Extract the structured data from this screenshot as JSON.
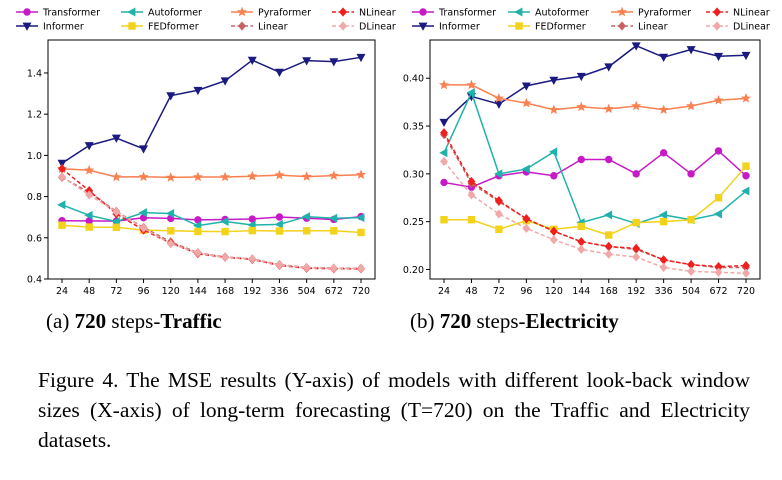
{
  "chart_data": [
    {
      "type": "line",
      "panel_label": "(a)",
      "subtitle_number": "720",
      "subtitle_mid": " steps-",
      "subtitle_dataset": "Traffic",
      "xlabel": "",
      "ylabel": "",
      "categories": [
        "24",
        "48",
        "72",
        "96",
        "120",
        "144",
        "168",
        "192",
        "336",
        "504",
        "672",
        "720"
      ],
      "ylim": [
        0.4,
        1.56
      ],
      "yticks": [
        0.4,
        0.6,
        0.8,
        1.0,
        1.2,
        1.4
      ],
      "ytick_labels": [
        "0.4",
        "0.6",
        "0.8",
        "1.0",
        "1.2",
        "1.4"
      ],
      "series": [
        {
          "name": "Transformer",
          "color": "#c71ac7",
          "marker": "circle",
          "dashed": false,
          "values": [
            0.683,
            0.682,
            0.681,
            0.697,
            0.694,
            0.687,
            0.689,
            0.691,
            0.701,
            0.695,
            0.689,
            0.703
          ]
        },
        {
          "name": "Informer",
          "color": "#1a1a80",
          "marker": "tri_down",
          "dashed": false,
          "values": [
            0.962,
            1.048,
            1.084,
            1.032,
            1.29,
            1.316,
            1.362,
            1.462,
            1.404,
            1.46,
            1.455,
            1.476
          ]
        },
        {
          "name": "Autoformer",
          "color": "#20b2aa",
          "marker": "tri_left",
          "dashed": false,
          "values": [
            0.76,
            0.709,
            0.679,
            0.722,
            0.718,
            0.659,
            0.679,
            0.662,
            0.665,
            0.703,
            0.695,
            0.698
          ]
        },
        {
          "name": "FEDformer",
          "color": "#f2d21a",
          "marker": "square",
          "dashed": false,
          "values": [
            0.661,
            0.652,
            0.651,
            0.637,
            0.634,
            0.631,
            0.63,
            0.635,
            0.633,
            0.634,
            0.634,
            0.626
          ]
        },
        {
          "name": "Pyraformer",
          "color": "#fa8050",
          "marker": "star",
          "dashed": false,
          "values": [
            0.935,
            0.928,
            0.895,
            0.896,
            0.893,
            0.895,
            0.895,
            0.899,
            0.904,
            0.897,
            0.902,
            0.906
          ]
        },
        {
          "name": "Linear",
          "color": "#c86262",
          "marker": "diamond",
          "dashed": true,
          "values": [
            0.893,
            0.821,
            0.728,
            0.65,
            0.58,
            0.528,
            0.507,
            0.498,
            0.47,
            0.456,
            0.453,
            0.452
          ]
        },
        {
          "name": "NLinear",
          "color": "#f01e1e",
          "marker": "diamond",
          "dashed": true,
          "values": [
            0.935,
            0.829,
            0.716,
            0.638,
            0.574,
            0.523,
            0.505,
            0.495,
            0.466,
            0.452,
            0.45,
            0.449
          ]
        },
        {
          "name": "DLinear",
          "color": "#f0a8a8",
          "marker": "diamond",
          "dashed": true,
          "values": [
            0.897,
            0.808,
            0.726,
            0.647,
            0.571,
            0.527,
            0.505,
            0.498,
            0.468,
            0.455,
            0.452,
            0.451
          ]
        }
      ]
    },
    {
      "type": "line",
      "panel_label": "(b)",
      "subtitle_number": "720",
      "subtitle_mid": " steps-",
      "subtitle_dataset": "Electricity",
      "xlabel": "",
      "ylabel": "",
      "categories": [
        "24",
        "48",
        "72",
        "96",
        "120",
        "144",
        "168",
        "192",
        "336",
        "504",
        "672",
        "720"
      ],
      "ylim": [
        0.19,
        0.44
      ],
      "yticks": [
        0.2,
        0.25,
        0.3,
        0.35,
        0.4
      ],
      "ytick_labels": [
        "0.20",
        "0.25",
        "0.30",
        "0.35",
        "0.40"
      ],
      "series": [
        {
          "name": "Transformer",
          "color": "#c71ac7",
          "marker": "circle",
          "dashed": false,
          "values": [
            0.291,
            0.286,
            0.298,
            0.302,
            0.298,
            0.315,
            0.315,
            0.3,
            0.322,
            0.3,
            0.324,
            0.298
          ]
        },
        {
          "name": "Informer",
          "color": "#1a1a80",
          "marker": "tri_down",
          "dashed": false,
          "values": [
            0.354,
            0.381,
            0.373,
            0.392,
            0.398,
            0.402,
            0.412,
            0.434,
            0.422,
            0.43,
            0.423,
            0.424
          ]
        },
        {
          "name": "Autoformer",
          "color": "#20b2aa",
          "marker": "tri_left",
          "dashed": false,
          "values": [
            0.322,
            0.385,
            0.3,
            0.305,
            0.323,
            0.249,
            0.257,
            0.248,
            0.257,
            0.252,
            0.258,
            0.282
          ]
        },
        {
          "name": "FEDformer",
          "color": "#f2d21a",
          "marker": "square",
          "dashed": false,
          "values": [
            0.252,
            0.252,
            0.242,
            0.251,
            0.242,
            0.245,
            0.236,
            0.249,
            0.25,
            0.252,
            0.275,
            0.308
          ]
        },
        {
          "name": "Pyraformer",
          "color": "#fa8050",
          "marker": "star",
          "dashed": false,
          "values": [
            0.393,
            0.393,
            0.379,
            0.374,
            0.367,
            0.37,
            0.368,
            0.371,
            0.367,
            0.371,
            0.377,
            0.379
          ]
        },
        {
          "name": "Linear",
          "color": "#c86262",
          "marker": "diamond",
          "dashed": true,
          "values": [
            0.341,
            0.29,
            0.271,
            0.253,
            0.24,
            0.229,
            0.224,
            0.221,
            0.21,
            0.205,
            0.202,
            0.202
          ]
        },
        {
          "name": "NLinear",
          "color": "#f01e1e",
          "marker": "diamond",
          "dashed": true,
          "values": [
            0.343,
            0.292,
            0.272,
            0.253,
            0.24,
            0.229,
            0.224,
            0.222,
            0.21,
            0.205,
            0.203,
            0.204
          ]
        },
        {
          "name": "DLinear",
          "color": "#f0a8a8",
          "marker": "diamond",
          "dashed": true,
          "values": [
            0.313,
            0.278,
            0.258,
            0.243,
            0.231,
            0.221,
            0.216,
            0.213,
            0.202,
            0.198,
            0.197,
            0.196
          ]
        }
      ]
    }
  ],
  "legend_order": [
    "Transformer",
    "Autoformer",
    "Pyraformer",
    "NLinear",
    "Informer",
    "FEDformer",
    "Linear",
    "DLinear"
  ],
  "caption": "Figure 4. The MSE results (Y-axis) of models with different look-back window sizes (X-axis) of long-term forecasting (T=720) on the Traffic and Electricity datasets."
}
